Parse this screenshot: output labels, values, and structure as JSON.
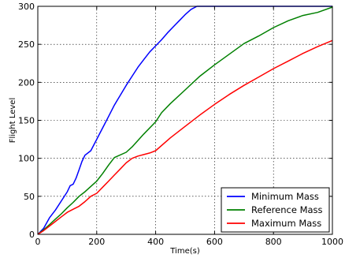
{
  "chart_data": {
    "type": "line",
    "xlabel": "Time(s)",
    "ylabel": "Flight Level",
    "xlim": [
      0,
      1000
    ],
    "ylim": [
      0,
      300
    ],
    "xticks": [
      0,
      200,
      400,
      600,
      800,
      1000
    ],
    "yticks": [
      0,
      50,
      100,
      150,
      200,
      250,
      300
    ],
    "grid": true,
    "legend_position": "lower-right",
    "series": [
      {
        "name": "Minimum Mass",
        "color": "#0000ff",
        "points": [
          [
            0,
            0
          ],
          [
            20,
            8
          ],
          [
            40,
            22
          ],
          [
            60,
            32
          ],
          [
            80,
            44
          ],
          [
            100,
            56
          ],
          [
            110,
            64
          ],
          [
            120,
            66
          ],
          [
            130,
            74
          ],
          [
            140,
            85
          ],
          [
            150,
            96
          ],
          [
            160,
            104
          ],
          [
            180,
            110
          ],
          [
            200,
            125
          ],
          [
            220,
            140
          ],
          [
            240,
            155
          ],
          [
            260,
            170
          ],
          [
            280,
            183
          ],
          [
            300,
            196
          ],
          [
            320,
            208
          ],
          [
            340,
            220
          ],
          [
            360,
            230
          ],
          [
            380,
            240
          ],
          [
            400,
            248
          ],
          [
            420,
            256
          ],
          [
            440,
            265
          ],
          [
            460,
            273
          ],
          [
            480,
            281
          ],
          [
            500,
            289
          ],
          [
            520,
            296
          ],
          [
            540,
            300
          ],
          [
            1000,
            300
          ]
        ]
      },
      {
        "name": "Reference Mass",
        "color": "#008000",
        "points": [
          [
            0,
            0
          ],
          [
            20,
            6
          ],
          [
            40,
            13
          ],
          [
            60,
            20
          ],
          [
            80,
            27
          ],
          [
            100,
            35
          ],
          [
            120,
            42
          ],
          [
            140,
            50
          ],
          [
            160,
            56
          ],
          [
            180,
            63
          ],
          [
            200,
            70
          ],
          [
            220,
            80
          ],
          [
            240,
            91
          ],
          [
            260,
            101
          ],
          [
            300,
            108
          ],
          [
            320,
            115
          ],
          [
            360,
            132
          ],
          [
            400,
            148
          ],
          [
            420,
            160
          ],
          [
            450,
            172
          ],
          [
            500,
            190
          ],
          [
            550,
            208
          ],
          [
            600,
            223
          ],
          [
            650,
            237
          ],
          [
            700,
            251
          ],
          [
            750,
            261
          ],
          [
            800,
            272
          ],
          [
            850,
            281
          ],
          [
            900,
            288
          ],
          [
            950,
            292
          ],
          [
            1000,
            299
          ]
        ]
      },
      {
        "name": "Maximum Mass",
        "color": "#ff0000",
        "points": [
          [
            0,
            0
          ],
          [
            20,
            5
          ],
          [
            40,
            11
          ],
          [
            60,
            17
          ],
          [
            80,
            23
          ],
          [
            100,
            29
          ],
          [
            120,
            33
          ],
          [
            140,
            37
          ],
          [
            160,
            43
          ],
          [
            180,
            50
          ],
          [
            200,
            54
          ],
          [
            220,
            62
          ],
          [
            240,
            70
          ],
          [
            260,
            78
          ],
          [
            280,
            86
          ],
          [
            300,
            94
          ],
          [
            320,
            100
          ],
          [
            340,
            103
          ],
          [
            360,
            105
          ],
          [
            380,
            107
          ],
          [
            400,
            110
          ],
          [
            450,
            127
          ],
          [
            500,
            142
          ],
          [
            550,
            157
          ],
          [
            600,
            171
          ],
          [
            650,
            184
          ],
          [
            700,
            196
          ],
          [
            750,
            207
          ],
          [
            800,
            218
          ],
          [
            850,
            228
          ],
          [
            900,
            238
          ],
          [
            950,
            247
          ],
          [
            1000,
            255
          ]
        ]
      }
    ]
  }
}
